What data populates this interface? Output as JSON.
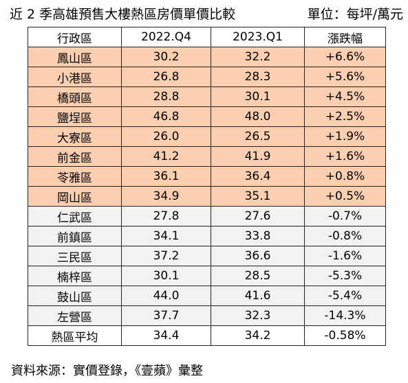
{
  "header": {
    "title": "近 2 季高雄預售大樓熱區房價單價比較",
    "unit": "單位：每坪/萬元"
  },
  "table": {
    "columns": [
      "行政區",
      "2022.Q4",
      "2023.Q1",
      "漲跌幅"
    ],
    "rows": [
      {
        "district": "鳳山區",
        "q4": "30.2",
        "q1": "32.2",
        "change": "+6.6%",
        "trend": "up"
      },
      {
        "district": "小港區",
        "q4": "26.8",
        "q1": "28.3",
        "change": "+5.6%",
        "trend": "up"
      },
      {
        "district": "橋頭區",
        "q4": "28.8",
        "q1": "30.1",
        "change": "+4.5%",
        "trend": "up"
      },
      {
        "district": "鹽埕區",
        "q4": "46.8",
        "q1": "48.0",
        "change": "+2.5%",
        "trend": "up"
      },
      {
        "district": "大寮區",
        "q4": "26.0",
        "q1": "26.5",
        "change": "+1.9%",
        "trend": "up"
      },
      {
        "district": "前金區",
        "q4": "41.2",
        "q1": "41.9",
        "change": "+1.6%",
        "trend": "up"
      },
      {
        "district": "苓雅區",
        "q4": "36.1",
        "q1": "36.4",
        "change": "+0.8%",
        "trend": "up"
      },
      {
        "district": "岡山區",
        "q4": "34.9",
        "q1": "35.1",
        "change": "+0.5%",
        "trend": "up"
      },
      {
        "district": "仁武區",
        "q4": "27.8",
        "q1": "27.6",
        "change": "-0.7%",
        "trend": "down"
      },
      {
        "district": "前鎮區",
        "q4": "34.1",
        "q1": "33.8",
        "change": "-0.8%",
        "trend": "down"
      },
      {
        "district": "三民區",
        "q4": "37.2",
        "q1": "36.6",
        "change": "-1.6%",
        "trend": "down"
      },
      {
        "district": "楠梓區",
        "q4": "30.1",
        "q1": "28.5",
        "change": "-5.3%",
        "trend": "down"
      },
      {
        "district": "鼓山區",
        "q4": "44.0",
        "q1": "41.6",
        "change": "-5.4%",
        "trend": "down"
      },
      {
        "district": "左營區",
        "q4": "37.7",
        "q1": "32.3",
        "change": "-14.3%",
        "trend": "down"
      }
    ],
    "average": {
      "district": "熱區平均",
      "q4": "34.4",
      "q1": "34.2",
      "change": "-0.58%"
    }
  },
  "footer": {
    "source": "資料來源：實價登錄，《壹蘋》彙整"
  },
  "colors": {
    "rise_fill": "#fbcfb0",
    "fall_fill": "#f2f2f2",
    "border": "#222222"
  }
}
